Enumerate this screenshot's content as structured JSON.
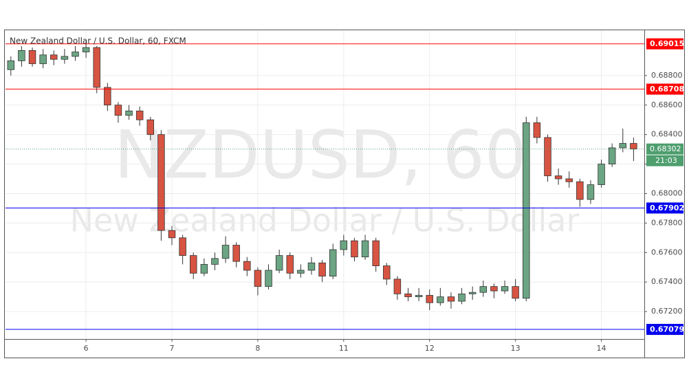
{
  "chart_data": {
    "type": "candlestick",
    "title": "New Zealand Dollar / U.S. Dollar, 60, FXCM",
    "watermark": "NZDUSD, 60",
    "watermark_subtitle": "New Zealand Dollar / U.S. Dollar",
    "up_color": "#6ba583",
    "down_color": "#d75442",
    "grid": true,
    "xlim": [
      0,
      59.5
    ],
    "xticks": [
      {
        "value": 7.5,
        "label": "6"
      },
      {
        "value": 15.5,
        "label": "7"
      },
      {
        "value": 23.5,
        "label": "8"
      },
      {
        "value": 31.5,
        "label": "11"
      },
      {
        "value": 39.5,
        "label": "12"
      },
      {
        "value": 47.5,
        "label": "13"
      },
      {
        "value": 55.5,
        "label": "14"
      }
    ],
    "ylim": [
      0.67014,
      0.69107
    ],
    "yticks": [
      {
        "value": 0.672,
        "label": "0.67200"
      },
      {
        "value": 0.674,
        "label": "0.67400"
      },
      {
        "value": 0.676,
        "label": "0.67600"
      },
      {
        "value": 0.678,
        "label": "0.67800"
      },
      {
        "value": 0.68,
        "label": "0.68000"
      },
      {
        "value": 0.682,
        "label": "0.68200"
      },
      {
        "value": 0.684,
        "label": "0.68400"
      },
      {
        "value": 0.686,
        "label": "0.68600"
      },
      {
        "value": 0.688,
        "label": "0.68800"
      }
    ],
    "levels": [
      {
        "value": 0.69015,
        "color": "#ff0000"
      },
      {
        "value": 0.68708,
        "color": "#ff0000"
      },
      {
        "value": 0.67902,
        "color": "#0000ee"
      },
      {
        "value": 0.67079,
        "color": "#0000ee"
      }
    ],
    "last_price": 0.68302,
    "last_color": "#4e9e6e",
    "countdown": "21:03",
    "x": [
      0.5,
      1.5,
      2.5,
      3.5,
      4.5,
      5.5,
      6.5,
      7.5,
      8.5,
      9.5,
      10.5,
      11.5,
      12.5,
      13.5,
      14.5,
      15.5,
      16.5,
      17.5,
      18.5,
      19.5,
      20.5,
      21.5,
      22.5,
      23.5,
      24.5,
      25.5,
      26.5,
      27.5,
      28.5,
      29.5,
      30.5,
      31.5,
      32.5,
      33.5,
      34.5,
      35.5,
      36.5,
      37.5,
      38.5,
      39.5,
      40.5,
      41.5,
      42.5,
      43.5,
      44.5,
      45.5,
      46.5,
      47.5,
      48.5,
      49.5,
      50.5,
      51.5,
      52.5,
      53.5,
      54.5,
      55.5,
      56.5,
      57.5,
      58.5
    ],
    "candles": [
      [
        0.6884,
        0.6893,
        0.688,
        0.689
      ],
      [
        0.689,
        0.69,
        0.6886,
        0.6897
      ],
      [
        0.6897,
        0.6899,
        0.6886,
        0.6888
      ],
      [
        0.6888,
        0.6898,
        0.6885,
        0.6894
      ],
      [
        0.6894,
        0.6897,
        0.6887,
        0.6891
      ],
      [
        0.6891,
        0.6898,
        0.6888,
        0.6893
      ],
      [
        0.6893,
        0.69,
        0.689,
        0.6896
      ],
      [
        0.6896,
        0.6902,
        0.6892,
        0.6899
      ],
      [
        0.6899,
        0.69,
        0.6868,
        0.6872
      ],
      [
        0.6872,
        0.6875,
        0.6856,
        0.686
      ],
      [
        0.686,
        0.6862,
        0.6848,
        0.6853
      ],
      [
        0.6853,
        0.686,
        0.685,
        0.6856
      ],
      [
        0.6856,
        0.6859,
        0.6846,
        0.685
      ],
      [
        0.685,
        0.6852,
        0.6836,
        0.684
      ],
      [
        0.684,
        0.6843,
        0.6768,
        0.6775
      ],
      [
        0.6775,
        0.6778,
        0.6765,
        0.677
      ],
      [
        0.677,
        0.6772,
        0.6752,
        0.6758
      ],
      [
        0.6758,
        0.676,
        0.6742,
        0.6746
      ],
      [
        0.6746,
        0.6756,
        0.6744,
        0.6752
      ],
      [
        0.6752,
        0.676,
        0.6748,
        0.6756
      ],
      [
        0.6756,
        0.6771,
        0.6753,
        0.6765
      ],
      [
        0.6765,
        0.6767,
        0.675,
        0.6754
      ],
      [
        0.6754,
        0.6757,
        0.6744,
        0.6748
      ],
      [
        0.6748,
        0.675,
        0.6731,
        0.6737
      ],
      [
        0.6737,
        0.6752,
        0.6735,
        0.6748
      ],
      [
        0.6748,
        0.6762,
        0.6746,
        0.6758
      ],
      [
        0.6758,
        0.676,
        0.6742,
        0.6746
      ],
      [
        0.6746,
        0.6752,
        0.6743,
        0.6748
      ],
      [
        0.6748,
        0.6757,
        0.6745,
        0.6753
      ],
      [
        0.6753,
        0.6755,
        0.674,
        0.6744
      ],
      [
        0.6744,
        0.6766,
        0.6742,
        0.6762
      ],
      [
        0.6762,
        0.6772,
        0.6758,
        0.6768
      ],
      [
        0.6768,
        0.677,
        0.6754,
        0.6757
      ],
      [
        0.6757,
        0.6772,
        0.6755,
        0.6768
      ],
      [
        0.6768,
        0.677,
        0.6747,
        0.6751
      ],
      [
        0.6751,
        0.6753,
        0.6738,
        0.6742
      ],
      [
        0.6742,
        0.6744,
        0.6728,
        0.6732
      ],
      [
        0.6732,
        0.6736,
        0.6727,
        0.673
      ],
      [
        0.673,
        0.6736,
        0.6727,
        0.6731
      ],
      [
        0.6731,
        0.6735,
        0.6721,
        0.6726
      ],
      [
        0.6726,
        0.6736,
        0.6724,
        0.673
      ],
      [
        0.673,
        0.6733,
        0.6722,
        0.6727
      ],
      [
        0.6727,
        0.6736,
        0.6725,
        0.6732
      ],
      [
        0.6732,
        0.6737,
        0.6728,
        0.6733
      ],
      [
        0.6733,
        0.6741,
        0.673,
        0.6737
      ],
      [
        0.6737,
        0.6739,
        0.6729,
        0.6734
      ],
      [
        0.6734,
        0.6741,
        0.6732,
        0.6737
      ],
      [
        0.6737,
        0.6742,
        0.6727,
        0.6729
      ],
      [
        0.6729,
        0.6852,
        0.6727,
        0.6848
      ],
      [
        0.6848,
        0.6852,
        0.6834,
        0.6838
      ],
      [
        0.6838,
        0.684,
        0.6808,
        0.6812
      ],
      [
        0.6812,
        0.6817,
        0.6806,
        0.681
      ],
      [
        0.681,
        0.6815,
        0.6804,
        0.6808
      ],
      [
        0.6808,
        0.681,
        0.6791,
        0.6796
      ],
      [
        0.6796,
        0.6809,
        0.6793,
        0.6806
      ],
      [
        0.6806,
        0.6823,
        0.6804,
        0.682
      ],
      [
        0.682,
        0.6834,
        0.6818,
        0.6831
      ],
      [
        0.6831,
        0.6844,
        0.6828,
        0.6834
      ],
      [
        0.6834,
        0.6838,
        0.6822,
        0.68302
      ]
    ]
  }
}
